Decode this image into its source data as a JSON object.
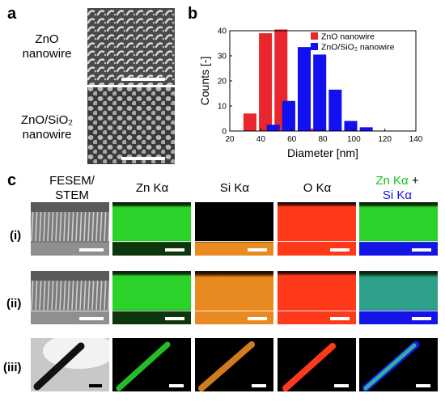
{
  "panels": {
    "a": "a",
    "b": "b",
    "c": "c"
  },
  "panel_a": {
    "label_top_line1": "ZnO",
    "label_top_line2": "nanowire",
    "label_bottom_line1": "ZnO/SiO₂",
    "label_bottom_line2": "nanowire"
  },
  "chart_data": {
    "type": "bar",
    "xlabel": "Diameter [nm]",
    "ylabel": "Counts [-]",
    "xlim": [
      20,
      140
    ],
    "ylim": [
      0,
      40
    ],
    "xticks": [
      20,
      40,
      60,
      80,
      100,
      120,
      140
    ],
    "yticks": [
      0,
      10,
      20,
      30,
      40
    ],
    "legend_position": "top-right",
    "series": [
      {
        "name": "ZnO nanowire",
        "color": "#e8262b",
        "x": [
          33,
          43,
          53,
          58,
          73,
          78
        ],
        "values": [
          7,
          39,
          40.5,
          11.5,
          1,
          1
        ]
      },
      {
        "name": "ZnO/SiO₂ nanowire",
        "color": "#1010f0",
        "x": [
          48,
          58,
          68,
          78,
          88,
          98,
          108
        ],
        "values": [
          2.5,
          12,
          33.5,
          30.5,
          16.5,
          4,
          1.5
        ]
      }
    ]
  },
  "panel_c": {
    "col_headers": [
      "FESEM/\nSTEM",
      "Zn Kα",
      "Si Kα",
      "O Kα"
    ],
    "last_header_zn": "Zn Kα",
    "last_header_plus": " +",
    "last_header_si": "Si Kα",
    "row_labels": [
      "(i)",
      "(ii)",
      "(iii)"
    ],
    "colors": {
      "zn": "#2ad22a",
      "si": "#ff9a1a",
      "o": "#ff3a1a",
      "zn_text": "#17c317",
      "si_text": "#1414e6"
    }
  }
}
